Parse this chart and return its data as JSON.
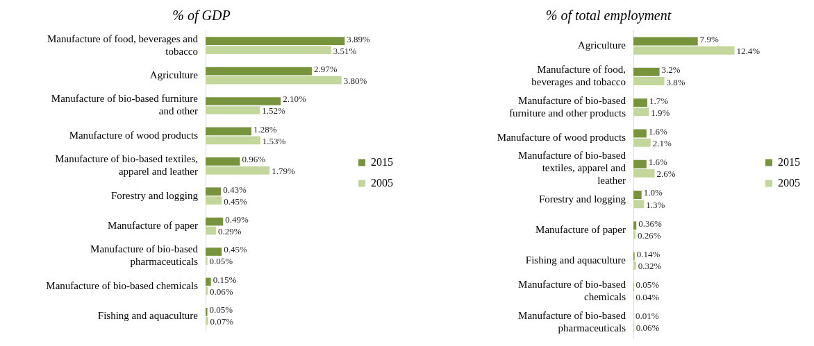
{
  "chart_data": [
    {
      "type": "bar",
      "orientation": "horizontal",
      "title": "% of GDP",
      "legend": "right",
      "categories": [
        "Manufacture of food, beverages and tobacco",
        "Agriculture",
        "Manufacture of bio-based furniture and other",
        "Manufacture of wood products",
        "Manufacture of bio-based textiles, apparel and leather",
        "Forestry and logging",
        "Manufacture of paper",
        "Manufacture of bio-based pharmaceuticals",
        "Manufacture of bio-based chemicals",
        "Fishing and aquaculture"
      ],
      "series": [
        {
          "name": "2015",
          "color": "#77933c",
          "values": [
            3.89,
            2.97,
            2.1,
            1.28,
            0.96,
            0.43,
            0.49,
            0.45,
            0.15,
            0.05
          ],
          "value_labels": [
            "3.89%",
            "2.97%",
            "2.10%",
            "1.28%",
            "0.96%",
            "0.43%",
            "0.49%",
            "0.45%",
            "0.15%",
            "0.05%"
          ]
        },
        {
          "name": "2005",
          "color": "#c3d69b",
          "values": [
            3.51,
            3.8,
            1.52,
            1.53,
            1.79,
            0.45,
            0.29,
            0.05,
            0.06,
            0.07
          ],
          "value_labels": [
            "3.51%",
            "3.80%",
            "1.52%",
            "1.53%",
            "1.79%",
            "0.45%",
            "0.29%",
            "0.05%",
            "0.06%",
            "0.07%"
          ]
        }
      ]
    },
    {
      "type": "bar",
      "orientation": "horizontal",
      "title": "% of total employment",
      "legend": "right",
      "categories": [
        "Agriculture",
        "Manufacture of food, beverages and tobacco",
        "Manufacture of bio-based furniture and other products",
        "Manufacture of wood products",
        "Manufacture of bio-based textiles, apparel and leather",
        "Forestry and logging",
        "Manufacture of paper",
        "Fishing and aquaculture",
        "Manufacture of bio-based chemicals",
        "Manufacture of bio-based pharmaceuticals"
      ],
      "series": [
        {
          "name": "2015",
          "color": "#77933c",
          "values": [
            7.9,
            3.2,
            1.7,
            1.6,
            1.6,
            1.0,
            0.36,
            0.14,
            0.05,
            0.01
          ],
          "value_labels": [
            "7.9%",
            "3.2%",
            "1.7%",
            "1.6%",
            "1.6%",
            "1.0%",
            "0.36%",
            "0.14%",
            "0.05%",
            "0.01%"
          ]
        },
        {
          "name": "2005",
          "color": "#c3d69b",
          "values": [
            12.4,
            3.8,
            1.9,
            2.1,
            2.6,
            1.3,
            0.26,
            0.32,
            0.04,
            0.06
          ],
          "value_labels": [
            "12.4%",
            "3.8%",
            "1.9%",
            "2.1%",
            "2.6%",
            "1.3%",
            "0.26%",
            "0.32%",
            "0.04%",
            "0.06%"
          ]
        }
      ]
    }
  ]
}
